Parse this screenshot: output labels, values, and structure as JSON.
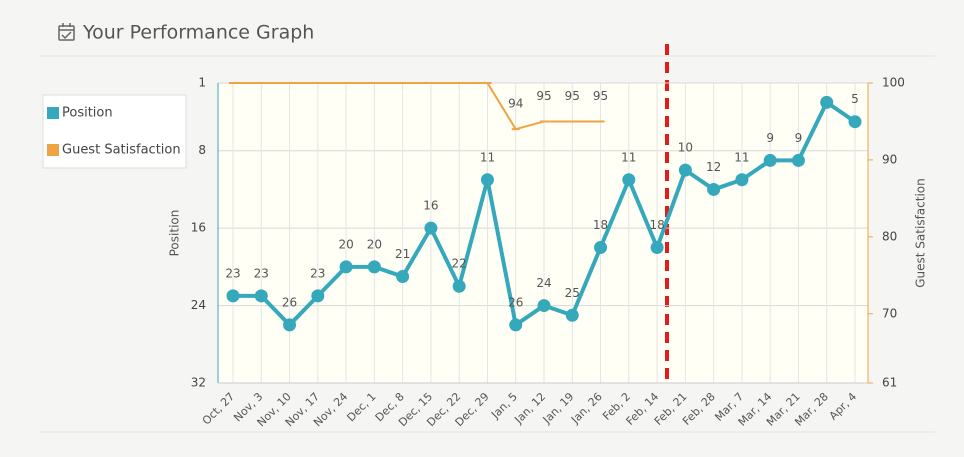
{
  "header": {
    "title": "Your Performance Graph"
  },
  "chart_data": {
    "type": "line",
    "categories": [
      "Oct, 27",
      "Nov, 3",
      "Nov, 10",
      "Nov, 17",
      "Nov, 24",
      "Dec, 1",
      "Dec, 8",
      "Dec, 15",
      "Dec, 22",
      "Dec, 29",
      "Jan, 5",
      "Jan, 12",
      "Jan, 19",
      "Jan, 26",
      "Feb, 2",
      "Feb, 14",
      "Feb, 21",
      "Feb, 28",
      "Mar, 7",
      "Mar, 14",
      "Mar, 21",
      "Mar, 28",
      "Apr, 4"
    ],
    "series": [
      {
        "name": "Position",
        "color": "#35a9bb",
        "axis": "y",
        "values": [
          23,
          23,
          26,
          23,
          20,
          20,
          21,
          16,
          22,
          11,
          26,
          24,
          25,
          18,
          11,
          18,
          10,
          12,
          11,
          9,
          9,
          3,
          5
        ],
        "value_labels": [
          "23",
          "23",
          "26",
          "23",
          "20",
          "20",
          "21",
          "16",
          "22",
          "11",
          "26",
          "24",
          "25",
          "18",
          "11",
          "18",
          "10",
          "12",
          "11",
          "9",
          "9",
          null,
          "5"
        ]
      },
      {
        "name": "Guest Satisfaction",
        "color": "#eea444",
        "axis": "y2",
        "values": [
          100,
          100,
          100,
          100,
          100,
          100,
          100,
          100,
          100,
          100,
          94,
          95,
          95,
          95,
          null,
          null,
          null,
          null,
          null,
          null,
          null,
          null,
          null
        ],
        "value_labels": [
          null,
          null,
          null,
          null,
          null,
          null,
          null,
          null,
          null,
          null,
          "94",
          "95",
          "95",
          "95",
          null,
          null,
          null,
          null,
          null,
          null,
          null,
          null,
          null
        ]
      }
    ],
    "y_label": "Position",
    "y2_label": "Guest Satisfaction",
    "ylim": [
      1,
      32
    ],
    "yticks": [
      1,
      8,
      16,
      24,
      32
    ],
    "y_inverted": true,
    "y2lim": [
      61,
      100
    ],
    "y2ticks": [
      61,
      70,
      80,
      90,
      100
    ],
    "grid": true,
    "legend": "left"
  }
}
